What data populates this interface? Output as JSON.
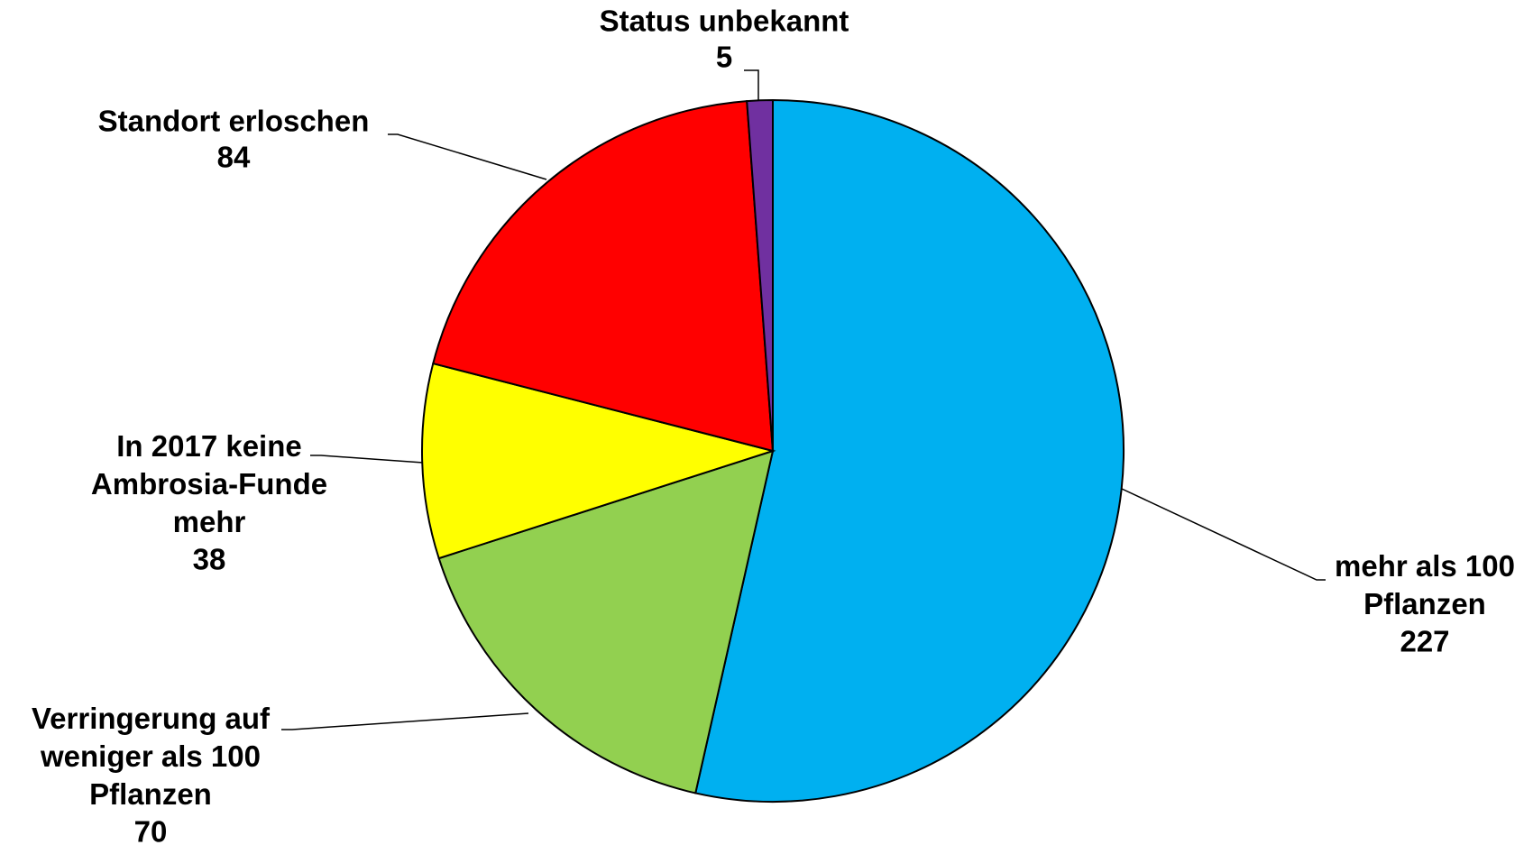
{
  "chart_data": {
    "type": "pie",
    "categories": [
      "mehr als 100\nPflanzen",
      "Verringerung auf\nweniger als 100\nPflanzen",
      "In 2017 keine\nAmbrosia-Funde\nmehr",
      "Standort erloschen",
      "Status unbekannt"
    ],
    "values": [
      227,
      70,
      38,
      84,
      5
    ],
    "colors": [
      "#00b0f0",
      "#92d050",
      "#ffff00",
      "#ff0000",
      "#7030a0"
    ]
  }
}
